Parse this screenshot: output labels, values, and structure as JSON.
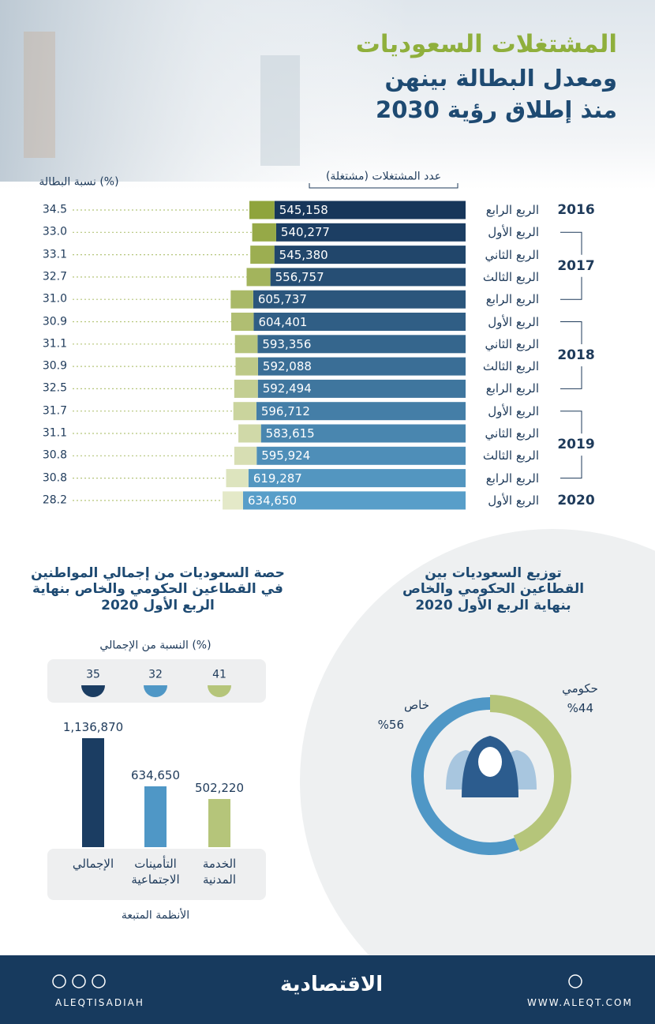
{
  "header": {
    "title_lines": [
      "المشتغلات السعوديات",
      "ومعدل البطالة بينهن",
      "منذ إطلاق رؤية 2030"
    ]
  },
  "chart_data": [
    {
      "type": "hbar",
      "categories": [
        "الربع الرابع",
        "الربع الأول",
        "الربع الثاني",
        "الربع الثالث",
        "الربع الرابع",
        "الربع الأول",
        "الربع الثاني",
        "الربع الثالث",
        "الربع الرابع",
        "الربع الأول",
        "الربع الثاني",
        "الربع الثالث",
        "الربع الرابع",
        "الربع الأول"
      ],
      "years": [
        "2016",
        "2017",
        null,
        null,
        null,
        "2018",
        null,
        null,
        null,
        "2019",
        null,
        null,
        null,
        "2020"
      ],
      "series": [
        {
          "name": "عدد المشتغلات (مشتغلة)",
          "values": [
            545158,
            540277,
            545380,
            556757,
            605737,
            604401,
            593356,
            592088,
            592494,
            596712,
            583615,
            595924,
            619287,
            634650
          ],
          "value_labels": [
            "545,158",
            "540,277",
            "545,380",
            "556,757",
            "605,737",
            "604,401",
            "593,356",
            "592,088",
            "592,494",
            "596,712",
            "583,615",
            "595,924",
            "619,287",
            "634,650"
          ],
          "colors": [
            "#17365a",
            "#1c3e63",
            "#21466b",
            "#264e74",
            "#2b567c",
            "#305e85",
            "#35668d",
            "#3a6e96",
            "#3f769e",
            "#447ea7",
            "#4986af",
            "#4e8eb8",
            "#5396c0",
            "#589ec9"
          ]
        },
        {
          "name": "نسبة البطالة (%)",
          "values": [
            34.5,
            33,
            33.1,
            32.7,
            31,
            30.9,
            31.1,
            30.9,
            32.5,
            31.7,
            31.1,
            30.8,
            30.8,
            28.2
          ],
          "value_labels": [
            "34.5",
            "33.0",
            "33.1",
            "32.7",
            "31.0",
            "30.9",
            "31.1",
            "30.9",
            "32.5",
            "31.7",
            "31.1",
            "30.8",
            "30.8",
            "28.2"
          ],
          "colors": [
            "#8fa43c",
            "#96a947",
            "#9cae51",
            "#a3b45c",
            "#a9b967",
            "#b0be72",
            "#b6c47d",
            "#bdc988",
            "#c3ce92",
            "#cad49d",
            "#d0d9a8",
            "#d7deb3",
            "#dde4be",
            "#e4e9c8"
          ]
        }
      ]
    },
    {
      "type": "column",
      "title": "حصة السعوديات من إجمالي المواطنين في القطاعين الحكومي والخاص بنهاية الربع الأول 2020",
      "categories": [
        "الإجمالي",
        "التأمينات الاجتماعية",
        "الخدمة المدنية"
      ],
      "values": [
        1136870,
        634650,
        502220
      ],
      "value_labels": [
        "1,136,870",
        "634,650",
        "502,220"
      ],
      "colors": [
        "#1b3d62",
        "#4f97c6",
        "#b5c57a"
      ],
      "x_label": "الأنظمة المتبعة",
      "share": {
        "label": "النسبة من الإجمالي (%)",
        "values": [
          35,
          32,
          41
        ]
      }
    },
    {
      "type": "donut",
      "title": "توزيع السعوديات بين القطاعين الحكومي والخاص بنهاية الربع الأول 2020",
      "categories": [
        "حكومي",
        "خاص"
      ],
      "values": [
        44,
        56
      ],
      "value_labels": [
        "%44",
        "%56"
      ],
      "colors": [
        "#b5c57a",
        "#4f97c6"
      ]
    }
  ],
  "footer": {
    "handle": "ALEQTISADIAH",
    "brand": "الاقتصادية",
    "website": "WWW.ALEQT.COM"
  }
}
